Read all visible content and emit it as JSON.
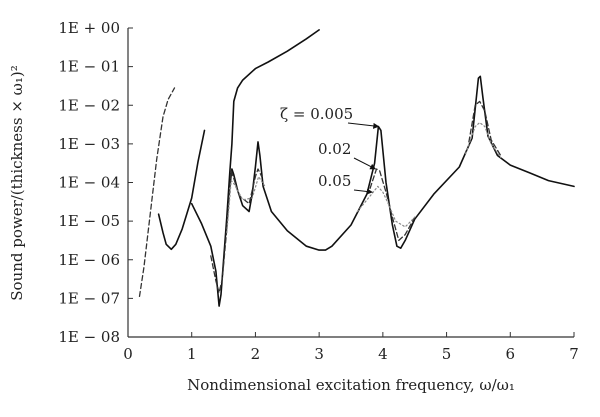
{
  "chart_data": {
    "type": "line",
    "title": "",
    "xlabel": "Nondimensional excitation frequency, ω/ω₁",
    "ylabel": "Sound power/(thickness × ω₁)²",
    "xlim": [
      0,
      7
    ],
    "ylim_log10": [
      -8,
      0
    ],
    "y_scale": "log",
    "grid": false,
    "legend": "none",
    "x_ticks": [
      "0",
      "1",
      "2",
      "3",
      "4",
      "5",
      "6",
      "7"
    ],
    "y_ticks": [
      "1E − 08",
      "1E − 07",
      "1E − 06",
      "1E − 05",
      "1E − 04",
      "1E − 03",
      "1E − 02",
      "1E − 01",
      "1E + 00"
    ],
    "annotations": [
      {
        "text": "ζ = 0.005",
        "x": 3.95,
        "y_log10": -2.55
      },
      {
        "text": "0.02",
        "x": 3.9,
        "y_log10": -3.65
      },
      {
        "text": "0.05",
        "x": 3.85,
        "y_log10": -4.25
      }
    ],
    "series": [
      {
        "style": "solid",
        "color": "#111111",
        "segments": [
          [
            [
              0.48,
              -4.82
            ],
            [
              0.55,
              -5.3
            ],
            [
              0.6,
              -5.6
            ],
            [
              0.68,
              -5.73
            ],
            [
              0.75,
              -5.6
            ],
            [
              0.85,
              -5.2
            ],
            [
              1.0,
              -4.4
            ],
            [
              1.1,
              -3.45
            ],
            [
              1.2,
              -2.65
            ]
          ],
          [
            [
              1.0,
              -4.55
            ],
            [
              1.15,
              -5.05
            ],
            [
              1.3,
              -5.65
            ],
            [
              1.38,
              -6.3
            ],
            [
              1.43,
              -7.2
            ],
            [
              1.46,
              -6.9
            ],
            [
              1.5,
              -6.0
            ],
            [
              1.55,
              -4.9
            ],
            [
              1.6,
              -3.7
            ],
            [
              1.63,
              -3.0
            ],
            [
              1.66,
              -1.9
            ],
            [
              1.72,
              -1.55
            ],
            [
              1.8,
              -1.35
            ],
            [
              2.0,
              -1.05
            ],
            [
              2.2,
              -0.88
            ],
            [
              2.5,
              -0.6
            ],
            [
              2.8,
              -0.28
            ],
            [
              3.0,
              -0.05
            ]
          ],
          [
            [
              1.6,
              -4.1
            ],
            [
              1.63,
              -3.65
            ],
            [
              1.66,
              -3.8
            ],
            [
              1.72,
              -4.2
            ],
            [
              1.8,
              -4.6
            ],
            [
              1.9,
              -4.75
            ],
            [
              1.95,
              -4.3
            ],
            [
              2.0,
              -3.6
            ],
            [
              2.04,
              -2.95
            ],
            [
              2.07,
              -3.3
            ],
            [
              2.12,
              -4.1
            ],
            [
              2.25,
              -4.75
            ],
            [
              2.5,
              -5.25
            ],
            [
              2.8,
              -5.65
            ],
            [
              3.0,
              -5.75
            ],
            [
              3.1,
              -5.75
            ],
            [
              3.2,
              -5.65
            ],
            [
              3.5,
              -5.1
            ],
            [
              3.75,
              -4.3
            ],
            [
              3.87,
              -3.5
            ],
            [
              3.93,
              -2.55
            ],
            [
              3.97,
              -2.65
            ],
            [
              4.05,
              -4.0
            ],
            [
              4.15,
              -5.1
            ],
            [
              4.22,
              -5.65
            ],
            [
              4.28,
              -5.7
            ],
            [
              4.35,
              -5.5
            ],
            [
              4.5,
              -4.95
            ],
            [
              4.8,
              -4.3
            ],
            [
              5.2,
              -3.6
            ],
            [
              5.4,
              -2.85
            ],
            [
              5.5,
              -1.3
            ],
            [
              5.53,
              -1.25
            ],
            [
              5.57,
              -1.8
            ],
            [
              5.65,
              -2.8
            ],
            [
              5.8,
              -3.3
            ],
            [
              6.0,
              -3.55
            ],
            [
              6.3,
              -3.75
            ],
            [
              6.6,
              -3.95
            ],
            [
              7.0,
              -4.1
            ]
          ]
        ]
      },
      {
        "style": "dashed",
        "color": "#333333",
        "segments": [
          [
            [
              0.18,
              -6.95
            ],
            [
              0.25,
              -6.2
            ],
            [
              0.35,
              -4.8
            ],
            [
              0.45,
              -3.4
            ],
            [
              0.55,
              -2.3
            ],
            [
              0.63,
              -1.85
            ],
            [
              0.73,
              -1.55
            ]
          ],
          [
            [
              1.3,
              -5.9
            ],
            [
              1.38,
              -6.55
            ],
            [
              1.43,
              -6.85
            ],
            [
              1.48,
              -6.5
            ],
            [
              1.55,
              -5.2
            ],
            [
              1.62,
              -3.7
            ],
            [
              1.66,
              -3.9
            ],
            [
              1.75,
              -4.35
            ],
            [
              1.9,
              -4.55
            ],
            [
              2.0,
              -3.85
            ],
            [
              2.04,
              -3.65
            ],
            [
              2.1,
              -3.85
            ]
          ],
          [
            [
              3.8,
              -4.15
            ],
            [
              3.9,
              -3.65
            ],
            [
              3.95,
              -3.7
            ],
            [
              4.05,
              -4.25
            ],
            [
              4.15,
              -4.9
            ],
            [
              4.25,
              -5.5
            ],
            [
              4.35,
              -5.35
            ],
            [
              4.5,
              -4.9
            ]
          ],
          [
            [
              5.35,
              -2.95
            ],
            [
              5.45,
              -2.0
            ],
            [
              5.52,
              -1.9
            ],
            [
              5.6,
              -2.15
            ],
            [
              5.7,
              -2.9
            ],
            [
              5.85,
              -3.3
            ]
          ]
        ]
      },
      {
        "style": "dotted",
        "color": "#888888",
        "segments": [
          [
            [
              1.55,
              -5.3
            ],
            [
              1.62,
              -3.95
            ],
            [
              1.67,
              -4.05
            ],
            [
              1.8,
              -4.45
            ],
            [
              1.95,
              -4.4
            ],
            [
              2.05,
              -3.85
            ],
            [
              2.15,
              -4.1
            ]
          ],
          [
            [
              3.6,
              -4.75
            ],
            [
              3.8,
              -4.35
            ],
            [
              3.92,
              -4.1
            ],
            [
              4.0,
              -4.25
            ],
            [
              4.1,
              -4.6
            ],
            [
              4.2,
              -5.0
            ],
            [
              4.35,
              -5.15
            ],
            [
              4.5,
              -4.9
            ]
          ],
          [
            [
              5.3,
              -3.25
            ],
            [
              5.45,
              -2.55
            ],
            [
              5.52,
              -2.45
            ],
            [
              5.6,
              -2.55
            ],
            [
              5.7,
              -3.0
            ],
            [
              5.85,
              -3.35
            ]
          ]
        ]
      }
    ]
  }
}
